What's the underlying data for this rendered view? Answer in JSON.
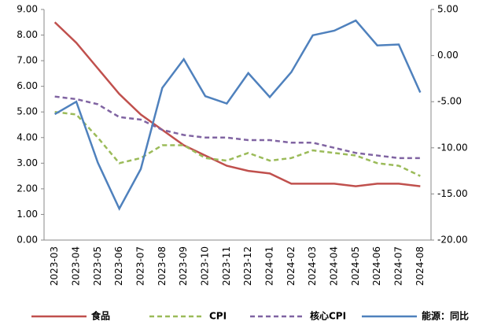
{
  "chart_data": {
    "type": "line",
    "categories": [
      "2023-03",
      "2023-04",
      "2023-05",
      "2023-06",
      "2023-07",
      "2023-08",
      "2023-09",
      "2023-10",
      "2023-11",
      "2023-12",
      "2024-01",
      "2024-02",
      "2024-03",
      "2024-04",
      "2024-05",
      "2024-06",
      "2024-07",
      "2024-08"
    ],
    "series": [
      {
        "name": "食品",
        "color": "#c0504d",
        "style": "solid",
        "values": [
          8.5,
          7.7,
          6.7,
          5.7,
          4.9,
          4.3,
          3.7,
          3.3,
          2.9,
          2.7,
          2.6,
          2.2,
          2.2,
          2.2,
          2.1,
          2.2,
          2.2,
          2.1
        ]
      },
      {
        "name": "CPI",
        "color": "#9bbb59",
        "style": "dashed",
        "values": [
          5.0,
          4.9,
          4.0,
          3.0,
          3.2,
          3.7,
          3.7,
          3.2,
          3.1,
          3.4,
          3.1,
          3.2,
          3.5,
          3.4,
          3.3,
          3.0,
          2.9,
          2.5
        ]
      },
      {
        "name": "核心CPI",
        "color": "#8064a2",
        "style": "dashed",
        "values": [
          5.6,
          5.5,
          5.3,
          4.8,
          4.7,
          4.3,
          4.1,
          4.0,
          4.0,
          3.9,
          3.9,
          3.8,
          3.8,
          3.6,
          3.4,
          3.3,
          3.2,
          3.2
        ]
      },
      {
        "name": "能源：同比",
        "color": "#4f81bd",
        "style": "solid",
        "axis": "y2",
        "values": [
          -6.35,
          -5.0,
          -11.6,
          -16.6,
          -12.3,
          -3.5,
          -0.4,
          -4.4,
          -5.2,
          -1.9,
          -4.5,
          -1.8,
          2.2,
          2.7,
          3.8,
          1.1,
          1.2,
          -4.0
        ]
      }
    ],
    "ylim": [
      0,
      9
    ],
    "yticks": [
      {
        "value": 0,
        "label": "0.00"
      },
      {
        "value": 1,
        "label": "1.00"
      },
      {
        "value": 2,
        "label": "2.00"
      },
      {
        "value": 3,
        "label": "3.00"
      },
      {
        "value": 4,
        "label": "4.00"
      },
      {
        "value": 5,
        "label": "5.00"
      },
      {
        "value": 6,
        "label": "6.00"
      },
      {
        "value": 7,
        "label": "7.00"
      },
      {
        "value": 8,
        "label": "8.00"
      },
      {
        "value": 9,
        "label": "9.00"
      }
    ],
    "y2lim": [
      -20,
      5
    ],
    "y2ticks": [
      {
        "value": -20,
        "label": "-20.00"
      },
      {
        "value": -15,
        "label": "-15.00"
      },
      {
        "value": -10,
        "label": "-10.00"
      },
      {
        "value": -5,
        "label": "-5.00"
      },
      {
        "value": 0,
        "label": "0.00"
      },
      {
        "value": 5,
        "label": "5.00"
      }
    ],
    "grid": false
  }
}
